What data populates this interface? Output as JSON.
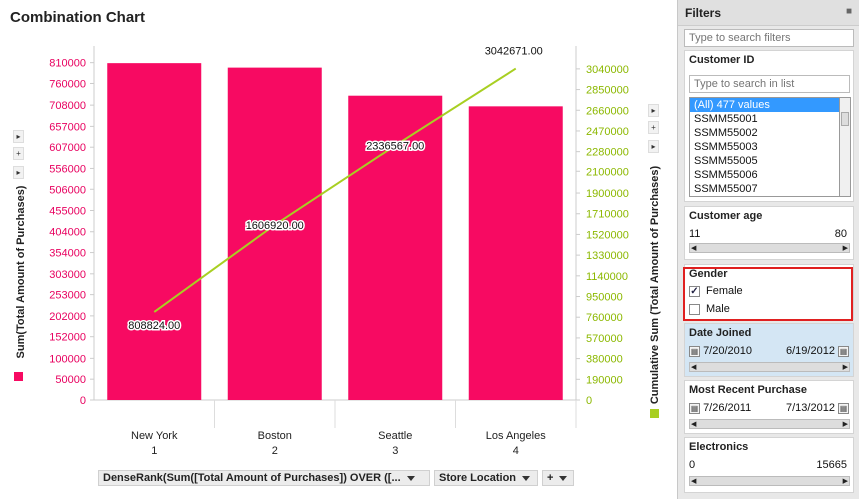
{
  "title": "Combination Chart",
  "chart_data": {
    "type": "bar",
    "categories": [
      "New York",
      "Boston",
      "Seattle",
      "Los Angeles"
    ],
    "category_ranks": [
      "1",
      "2",
      "3",
      "4"
    ],
    "series": [
      {
        "name": "Sum(Total Amount of Purchases)",
        "type": "bar",
        "axis": "left",
        "color": "#f70a62",
        "values": [
          808824,
          798096,
          730647,
          705104
        ]
      },
      {
        "name": "Cumulative Sum (Total Amount of Purchases)",
        "type": "line",
        "axis": "right",
        "color": "#a8cf22",
        "values": [
          808824,
          1606920,
          2336567,
          3042671
        ],
        "labels": [
          "808824.00",
          "1606920.00",
          "2336567.00",
          "3042671.00"
        ]
      }
    ],
    "ylabel": "Sum(Total Amount of Purchases)",
    "y2label": "Cumulative Sum (Total Amount of Purchases)",
    "ylim": [
      0,
      850000
    ],
    "y2lim": [
      0,
      3250000
    ],
    "yticks": [
      "810000",
      "760000",
      "708000",
      "657000",
      "607000",
      "556000",
      "506000",
      "455000",
      "404000",
      "354000",
      "303000",
      "253000",
      "202000",
      "152000",
      "100000",
      "50000",
      "0"
    ],
    "y2ticks": [
      "3040000",
      "2850000",
      "2660000",
      "2470000",
      "2280000",
      "2100000",
      "1900000",
      "1710000",
      "1520000",
      "1330000",
      "1140000",
      "950000",
      "760000",
      "570000",
      "380000",
      "190000",
      "0"
    ],
    "grid": false
  },
  "axis_controls": {
    "x_rank": "DenseRank(Sum([Total Amount of Purchases]) OVER ([...",
    "x_category": "Store Location",
    "plus": "+"
  },
  "filters": {
    "title": "Filters",
    "search_placeholder": "Type to search filters",
    "customer_id": {
      "title": "Customer ID",
      "search_placeholder": "Type to search in list",
      "items": [
        "(All) 477 values",
        "SSMM55001",
        "SSMM55002",
        "SSMM55003",
        "SSMM55005",
        "SSMM55006",
        "SSMM55007"
      ]
    },
    "customer_age": {
      "title": "Customer age",
      "min": "11",
      "max": "80"
    },
    "gender": {
      "title": "Gender",
      "options": [
        {
          "label": "Female",
          "checked": true
        },
        {
          "label": "Male",
          "checked": false
        }
      ]
    },
    "date_joined": {
      "title": "Date Joined",
      "from": "7/20/2010",
      "to": "6/19/2012"
    },
    "most_recent_purchase": {
      "title": "Most Recent Purchase",
      "from": "7/26/2011",
      "to": "7/13/2012"
    },
    "electronics": {
      "title": "Electronics",
      "min": "0",
      "max": "15665"
    }
  }
}
